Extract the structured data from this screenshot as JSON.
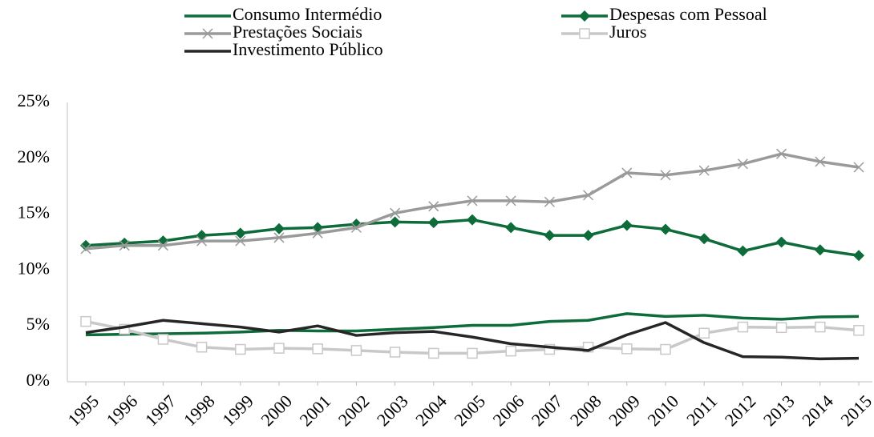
{
  "chart_data": {
    "type": "line",
    "categories": [
      "1995",
      "1996",
      "1997",
      "1998",
      "1999",
      "2000",
      "2001",
      "2002",
      "2003",
      "2004",
      "2005",
      "2006",
      "2007",
      "2008",
      "2009",
      "2010",
      "2011",
      "2012",
      "2013",
      "2014",
      "2015"
    ],
    "ylim": [
      0,
      25
    ],
    "yticks": [
      {
        "value": 0,
        "label": "0%"
      },
      {
        "value": 5,
        "label": "5%"
      },
      {
        "value": 10,
        "label": "10%"
      },
      {
        "value": 15,
        "label": "15%"
      },
      {
        "value": 20,
        "label": "20%"
      },
      {
        "value": 25,
        "label": "25%"
      }
    ],
    "grid": false,
    "legend": "top",
    "series": [
      {
        "name": "Consumo Intermédio",
        "color": "#0e6b3a",
        "marker": "none",
        "values": [
          4.2,
          4.25,
          4.3,
          4.35,
          4.45,
          4.6,
          4.55,
          4.55,
          4.7,
          4.85,
          5.05,
          5.05,
          5.4,
          5.5,
          6.1,
          5.85,
          5.95,
          5.7,
          5.6,
          5.8,
          5.85
        ]
      },
      {
        "name": "Despesas com Pessoal",
        "color": "#0e6b3a",
        "marker": "diamond",
        "values": [
          12.2,
          12.4,
          12.6,
          13.1,
          13.3,
          13.7,
          13.8,
          14.1,
          14.3,
          14.25,
          14.5,
          13.8,
          13.1,
          13.1,
          14.0,
          13.65,
          12.8,
          11.7,
          12.5,
          11.8,
          11.3
        ]
      },
      {
        "name": "Prestações Sociais",
        "color": "#9a9a9a",
        "marker": "x",
        "values": [
          11.9,
          12.2,
          12.2,
          12.6,
          12.6,
          12.9,
          13.3,
          13.8,
          15.1,
          15.7,
          16.2,
          16.2,
          16.1,
          16.7,
          18.7,
          18.5,
          18.9,
          19.5,
          20.4,
          19.7,
          19.2
        ]
      },
      {
        "name": "Juros",
        "color": "#c8c8c8",
        "marker": "square",
        "values": [
          5.4,
          4.7,
          3.8,
          3.1,
          2.9,
          3.0,
          2.95,
          2.8,
          2.65,
          2.55,
          2.55,
          2.75,
          2.9,
          3.1,
          2.95,
          2.9,
          4.35,
          4.9,
          4.85,
          4.9,
          4.6
        ]
      },
      {
        "name": "Investimento Público",
        "color": "#262626",
        "marker": "none",
        "values": [
          4.4,
          4.9,
          5.5,
          5.2,
          4.9,
          4.45,
          5.0,
          4.15,
          4.4,
          4.5,
          4.0,
          3.4,
          3.1,
          2.8,
          4.2,
          5.3,
          3.5,
          2.25,
          2.2,
          2.05,
          2.1
        ]
      }
    ]
  }
}
